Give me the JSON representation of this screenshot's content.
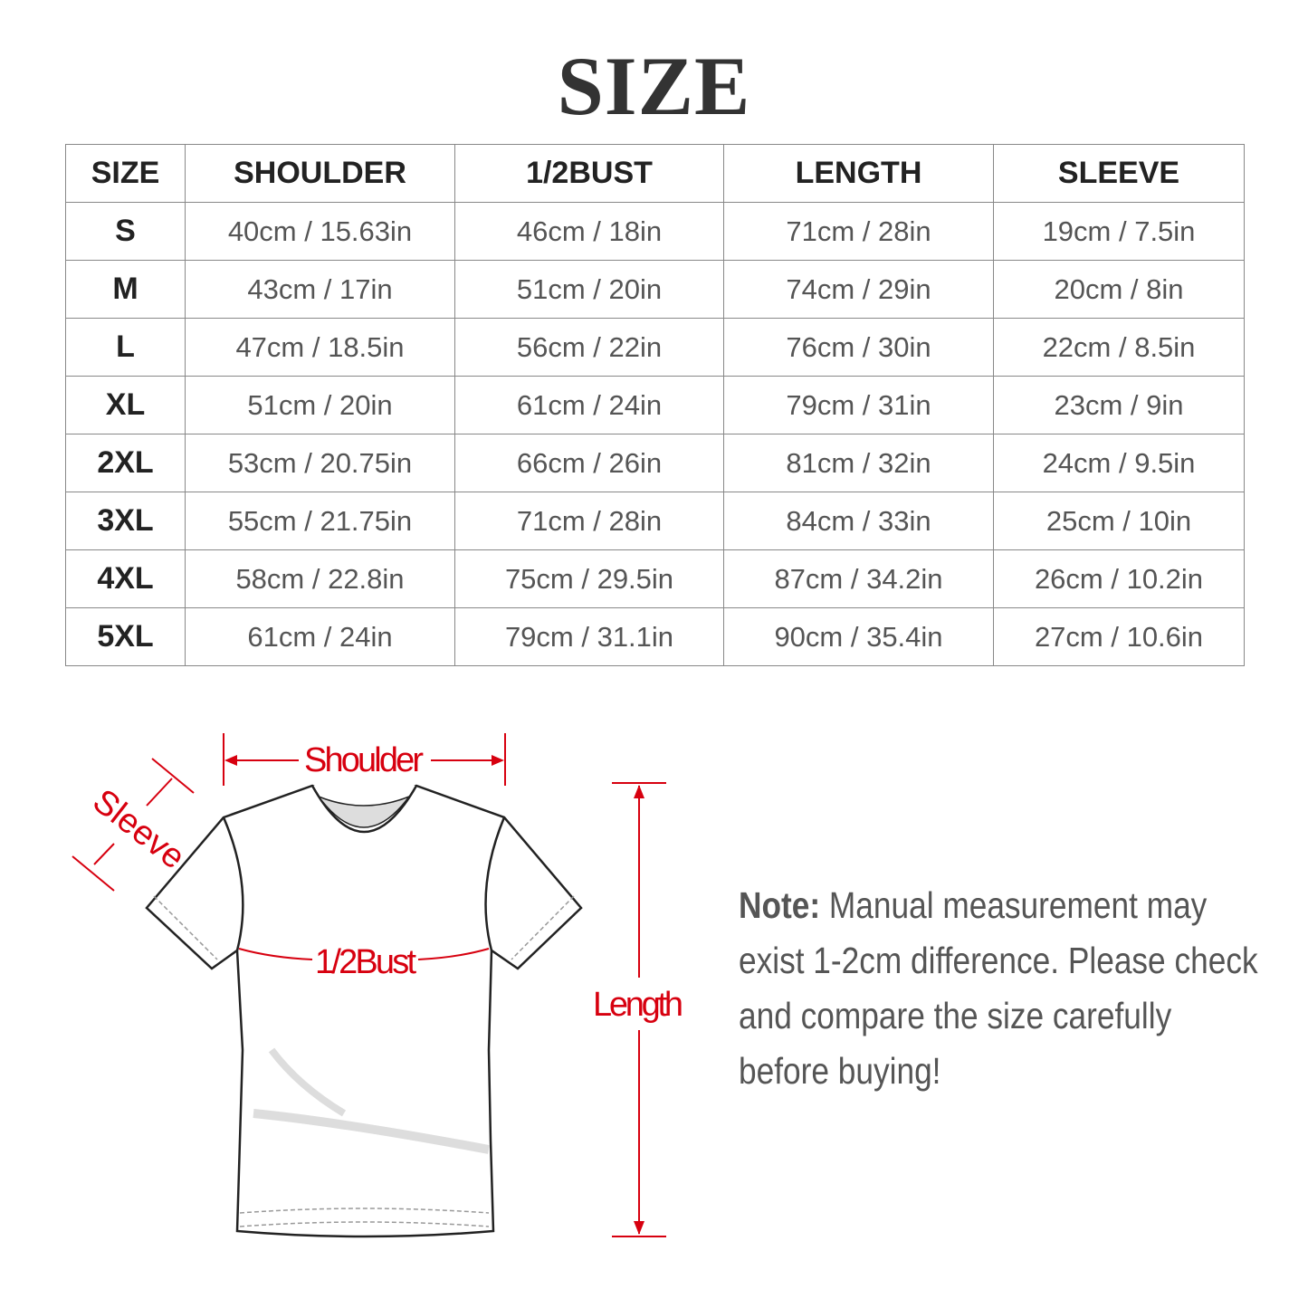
{
  "title": "SIZE",
  "table": {
    "headers": [
      "SIZE",
      "SHOULDER",
      "1/2BUST",
      "LENGTH",
      "SLEEVE"
    ],
    "rows": [
      [
        "S",
        "40cm / 15.63in",
        "46cm / 18in",
        "71cm / 28in",
        "19cm / 7.5in"
      ],
      [
        "M",
        "43cm / 17in",
        "51cm / 20in",
        "74cm / 29in",
        "20cm / 8in"
      ],
      [
        "L",
        "47cm / 18.5in",
        "56cm / 22in",
        "76cm / 30in",
        "22cm / 8.5in"
      ],
      [
        "XL",
        "51cm / 20in",
        "61cm / 24in",
        "79cm / 31in",
        "23cm / 9in"
      ],
      [
        "2XL",
        "53cm / 20.75in",
        "66cm / 26in",
        "81cm / 32in",
        "24cm / 9.5in"
      ],
      [
        "3XL",
        "55cm / 21.75in",
        "71cm / 28in",
        "84cm / 33in",
        "25cm / 10in"
      ],
      [
        "4XL",
        "58cm / 22.8in",
        "75cm / 29.5in",
        "87cm / 34.2in",
        "26cm / 10.2in"
      ],
      [
        "5XL",
        "61cm / 24in",
        "79cm / 31.1in",
        "90cm / 35.4in",
        "27cm / 10.6in"
      ]
    ]
  },
  "diagram": {
    "shoulder_label": "Shoulder",
    "sleeve_label": "Sleeve",
    "bust_label": "1/2Bust",
    "length_label": "Length",
    "accent_color": "#d7000f"
  },
  "note": {
    "prefix": "Note:",
    "text": " Manual measurement may exist 1-2cm difference. Please check and compare the size carefully before buying!"
  }
}
